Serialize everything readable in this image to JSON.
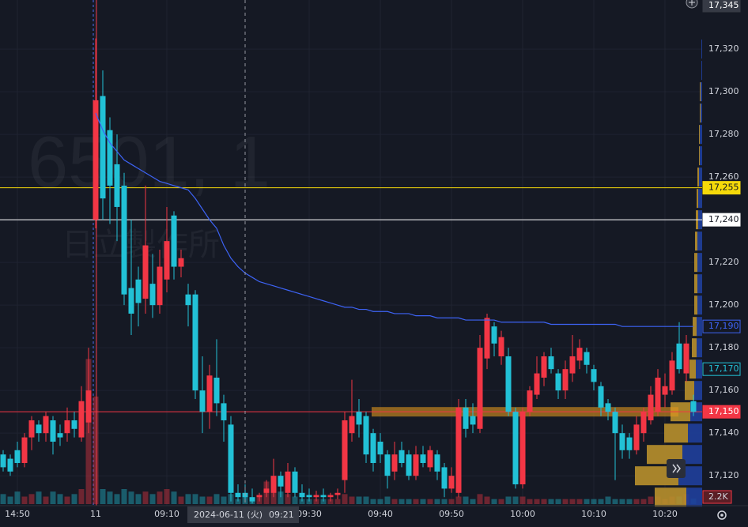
{
  "chart_data": {
    "type": "candlestick",
    "watermark": {
      "symbol": "6501, 1",
      "name": "日立製作所"
    },
    "categories": [
      null,
      null,
      "14:50",
      null,
      null,
      null,
      null,
      null,
      null,
      null,
      null,
      null,
      null,
      "11",
      null,
      null,
      null,
      null,
      null,
      null,
      null,
      null,
      null,
      "09:10",
      null,
      null,
      null,
      null,
      null,
      null,
      null,
      null,
      null,
      null,
      null,
      null,
      null,
      null,
      null,
      null,
      null,
      null,
      null,
      "09:30",
      null,
      null,
      null,
      null,
      null,
      null,
      null,
      null,
      null,
      "09:40",
      null,
      null,
      null,
      null,
      null,
      null,
      null,
      null,
      null,
      "09:50",
      null,
      null,
      null,
      null,
      null,
      null,
      null,
      null,
      null,
      "10:00",
      null,
      null,
      null,
      null,
      null,
      null,
      null,
      null,
      null,
      "10:10",
      null,
      null,
      null,
      null,
      null,
      null,
      null,
      null,
      null,
      "10:20",
      null,
      null,
      null,
      null
    ],
    "open": [
      17130,
      17128,
      17132,
      17126,
      17138,
      17144,
      17140,
      17146,
      17140,
      17140,
      17146,
      17138,
      17145,
      17240,
      17298,
      17282,
      17266,
      17256,
      17208,
      17212,
      17203,
      17210,
      17200,
      17212,
      17242,
      17218,
      17205,
      17205,
      17160,
      17150,
      17166,
      17154,
      17144,
      17112,
      17112,
      17110,
      17110,
      17112,
      17112,
      17120,
      17112,
      17122,
      17112,
      17111,
      17110,
      17111,
      17110,
      17111,
      17118,
      17140,
      17150,
      17148,
      17140,
      17136,
      17130,
      17122,
      17132,
      17130,
      17120,
      17130,
      17124,
      17130,
      17124,
      17114,
      17112,
      17152,
      17148,
      17142,
      17175,
      17190,
      17176,
      17176,
      17150,
      17116,
      17150,
      17158,
      17166,
      17176,
      17168,
      17160,
      17168,
      17174,
      17178,
      17170,
      17162,
      17154,
      17150,
      17140,
      17138,
      17132,
      17140,
      17146,
      17150,
      17158,
      17160,
      17182,
      17168,
      17155
    ],
    "high": [
      17132,
      17130,
      17136,
      17140,
      17148,
      17146,
      17150,
      17148,
      17144,
      17152,
      17150,
      17162,
      17180,
      17325,
      17310,
      17288,
      17280,
      17262,
      17240,
      17218,
      17256,
      17224,
      17226,
      17246,
      17244,
      17226,
      17210,
      17207,
      17176,
      17172,
      17184,
      17158,
      17148,
      17116,
      17116,
      17114,
      17112,
      17118,
      17128,
      17122,
      17126,
      17124,
      17116,
      17114,
      17113,
      17114,
      17112,
      17114,
      17150,
      17165,
      17156,
      17150,
      17142,
      17140,
      17132,
      17136,
      17136,
      17132,
      17134,
      17134,
      17134,
      17132,
      17126,
      17124,
      17156,
      17156,
      17154,
      17186,
      17196,
      17192,
      17188,
      17180,
      17152,
      17152,
      17162,
      17176,
      17178,
      17180,
      17170,
      17174,
      17186,
      17184,
      17180,
      17172,
      17164,
      17156,
      17152,
      17144,
      17140,
      17148,
      17152,
      17162,
      17170,
      17168,
      17178,
      17192,
      17186,
      17158
    ],
    "low": [
      17122,
      17120,
      17124,
      17124,
      17132,
      17136,
      17136,
      17130,
      17134,
      17136,
      17138,
      17136,
      17140,
      17236,
      17240,
      17238,
      17230,
      17200,
      17186,
      17190,
      17196,
      17194,
      17196,
      17206,
      17212,
      17213,
      17190,
      17156,
      17140,
      17142,
      17148,
      17136,
      17108,
      17108,
      17108,
      17107,
      17108,
      17110,
      17110,
      17110,
      17110,
      17110,
      17108,
      17108,
      17108,
      17108,
      17108,
      17109,
      17112,
      17136,
      17138,
      17126,
      17122,
      17126,
      17114,
      17118,
      17124,
      17118,
      17118,
      17124,
      17122,
      17118,
      17110,
      17112,
      17110,
      17138,
      17140,
      17140,
      17170,
      17176,
      17172,
      17148,
      17114,
      17114,
      17148,
      17156,
      17162,
      17168,
      17156,
      17156,
      17164,
      17170,
      17168,
      17160,
      17148,
      17146,
      17118,
      17128,
      17128,
      17130,
      17136,
      17144,
      17148,
      17152,
      17158,
      17168,
      17164,
      17148
    ],
    "close": [
      17124,
      17122,
      17126,
      17138,
      17146,
      17140,
      17148,
      17136,
      17138,
      17146,
      17142,
      17155,
      17160,
      17296,
      17250,
      17256,
      17246,
      17205,
      17196,
      17201,
      17228,
      17200,
      17218,
      17230,
      17218,
      17222,
      17200,
      17160,
      17150,
      17167,
      17154,
      17146,
      17112,
      17110,
      17110,
      17108,
      17111,
      17114,
      17120,
      17115,
      17122,
      17112,
      17110,
      17110,
      17111,
      17110,
      17111,
      17112,
      17146,
      17148,
      17144,
      17130,
      17126,
      17130,
      17120,
      17130,
      17126,
      17120,
      17130,
      17126,
      17132,
      17122,
      17114,
      17120,
      17152,
      17142,
      17144,
      17180,
      17194,
      17182,
      17185,
      17150,
      17116,
      17150,
      17160,
      17168,
      17176,
      17170,
      17160,
      17170,
      17176,
      17180,
      17172,
      17164,
      17152,
      17150,
      17140,
      17132,
      17132,
      17144,
      17150,
      17158,
      17166,
      17162,
      17174,
      17170,
      17182,
      17150
    ],
    "volume": [
      4000,
      3000,
      5000,
      3000,
      4000,
      5000,
      3000,
      5000,
      4000,
      3000,
      4000,
      6000,
      58000,
      43000,
      6000,
      5000,
      4000,
      6000,
      5000,
      4000,
      5000,
      4000,
      5000,
      6000,
      5000,
      3000,
      4000,
      4000,
      3000,
      3000,
      4000,
      3000,
      4000,
      2000,
      3000,
      2000,
      3000,
      9000,
      8000,
      5000,
      4000,
      3000,
      2000,
      2000,
      2000,
      2000,
      2000,
      2000,
      4000,
      3000,
      3000,
      3000,
      2000,
      2000,
      3000,
      2000,
      2000,
      2000,
      2000,
      2000,
      2000,
      2000,
      2000,
      2000,
      3000,
      3000,
      2000,
      4000,
      3000,
      2000,
      2000,
      3000,
      3000,
      3000,
      2000,
      2000,
      2000,
      2000,
      2000,
      2000,
      2000,
      2000,
      2000,
      2000,
      2000,
      3000,
      2000,
      2000,
      2000,
      2000,
      2000,
      3000,
      3000,
      2000,
      3000,
      3000,
      4000,
      2200
    ],
    "vlim": [
      0,
      60000
    ],
    "volume_last": {
      "value": 2200,
      "label": "2.2K"
    },
    "up_color": "#f23645",
    "down_color": "#22c1d6",
    "vwap": {
      "color": "#3d63f5",
      "values": [
        null,
        null,
        null,
        null,
        null,
        null,
        null,
        null,
        null,
        null,
        null,
        null,
        null,
        17290,
        17282,
        17276,
        17272,
        17268,
        17266,
        17264,
        17262,
        17260,
        17258,
        17257,
        17256,
        17255,
        17254,
        17250,
        17245,
        17240,
        17236,
        17228,
        17222,
        17218,
        17215,
        17213,
        17211,
        17210,
        17209,
        17208,
        17207,
        17206,
        17205,
        17204,
        17203,
        17202,
        17201,
        17200,
        17199,
        17199,
        17198,
        17198,
        17197,
        17197,
        17197,
        17196,
        17196,
        17196,
        17195,
        17195,
        17195,
        17194,
        17194,
        17194,
        17194,
        17193,
        17193,
        17193,
        17193,
        17193,
        17192,
        17192,
        17192,
        17192,
        17192,
        17192,
        17192,
        17191,
        17191,
        17191,
        17191,
        17191,
        17191,
        17191,
        17191,
        17191,
        17191,
        17190,
        17190,
        17190,
        17190,
        17190,
        17190,
        17190,
        17190,
        17190,
        17190,
        17190
      ]
    },
    "vwap_last": {
      "value": 17190,
      "label": "17,190"
    },
    "marker_price": {
      "value": 17170,
      "label": "17,170"
    },
    "last_price": {
      "value": 17150,
      "label": "17,150"
    },
    "horizontal_lines": [
      {
        "value": 17255,
        "label": "17,255",
        "color": "#f5d90a"
      },
      {
        "value": 17240,
        "label": "17,240",
        "color": "#ffffff"
      }
    ],
    "profile": {
      "prices": [
        17110,
        17120,
        17130,
        17140,
        17150,
        17160,
        17170,
        17180,
        17190,
        17200,
        17210,
        17220,
        17230,
        17240,
        17250,
        17260,
        17270,
        17280,
        17290,
        17300,
        17310,
        17320
      ],
      "buy": [
        40,
        55,
        45,
        30,
        25,
        12,
        8,
        6,
        5,
        4,
        4,
        4,
        3,
        3,
        2,
        2,
        1,
        1,
        1,
        1,
        0,
        0
      ],
      "sell": [
        20,
        30,
        25,
        18,
        15,
        10,
        8,
        7,
        7,
        6,
        6,
        6,
        6,
        5,
        5,
        4,
        3,
        3,
        2,
        2,
        1,
        1
      ],
      "buy_color": "#b8902c",
      "sell_color": "#1f3f9c"
    },
    "poc_price": 17150,
    "crosshair": {
      "index": 34,
      "date": "2024-06-11 (火)",
      "time": "09:21",
      "price": {
        "value": 17345,
        "label": "17,345"
      }
    },
    "ylim": [
      17106,
      17343
    ],
    "yticks": [
      {
        "value": 17120,
        "label": "17,120"
      },
      {
        "value": 17140,
        "label": "17,140"
      },
      {
        "value": 17160,
        "label": "17,160"
      },
      {
        "value": 17180,
        "label": "17,180"
      },
      {
        "value": 17200,
        "label": "17,200"
      },
      {
        "value": 17220,
        "label": "17,220"
      },
      {
        "value": 17240,
        "label": "17,240"
      },
      {
        "value": 17260,
        "label": "17,260"
      },
      {
        "value": 17280,
        "label": "17,280"
      },
      {
        "value": 17300,
        "label": "17,300"
      },
      {
        "value": 17320,
        "label": "17,320"
      }
    ],
    "grid": true
  }
}
